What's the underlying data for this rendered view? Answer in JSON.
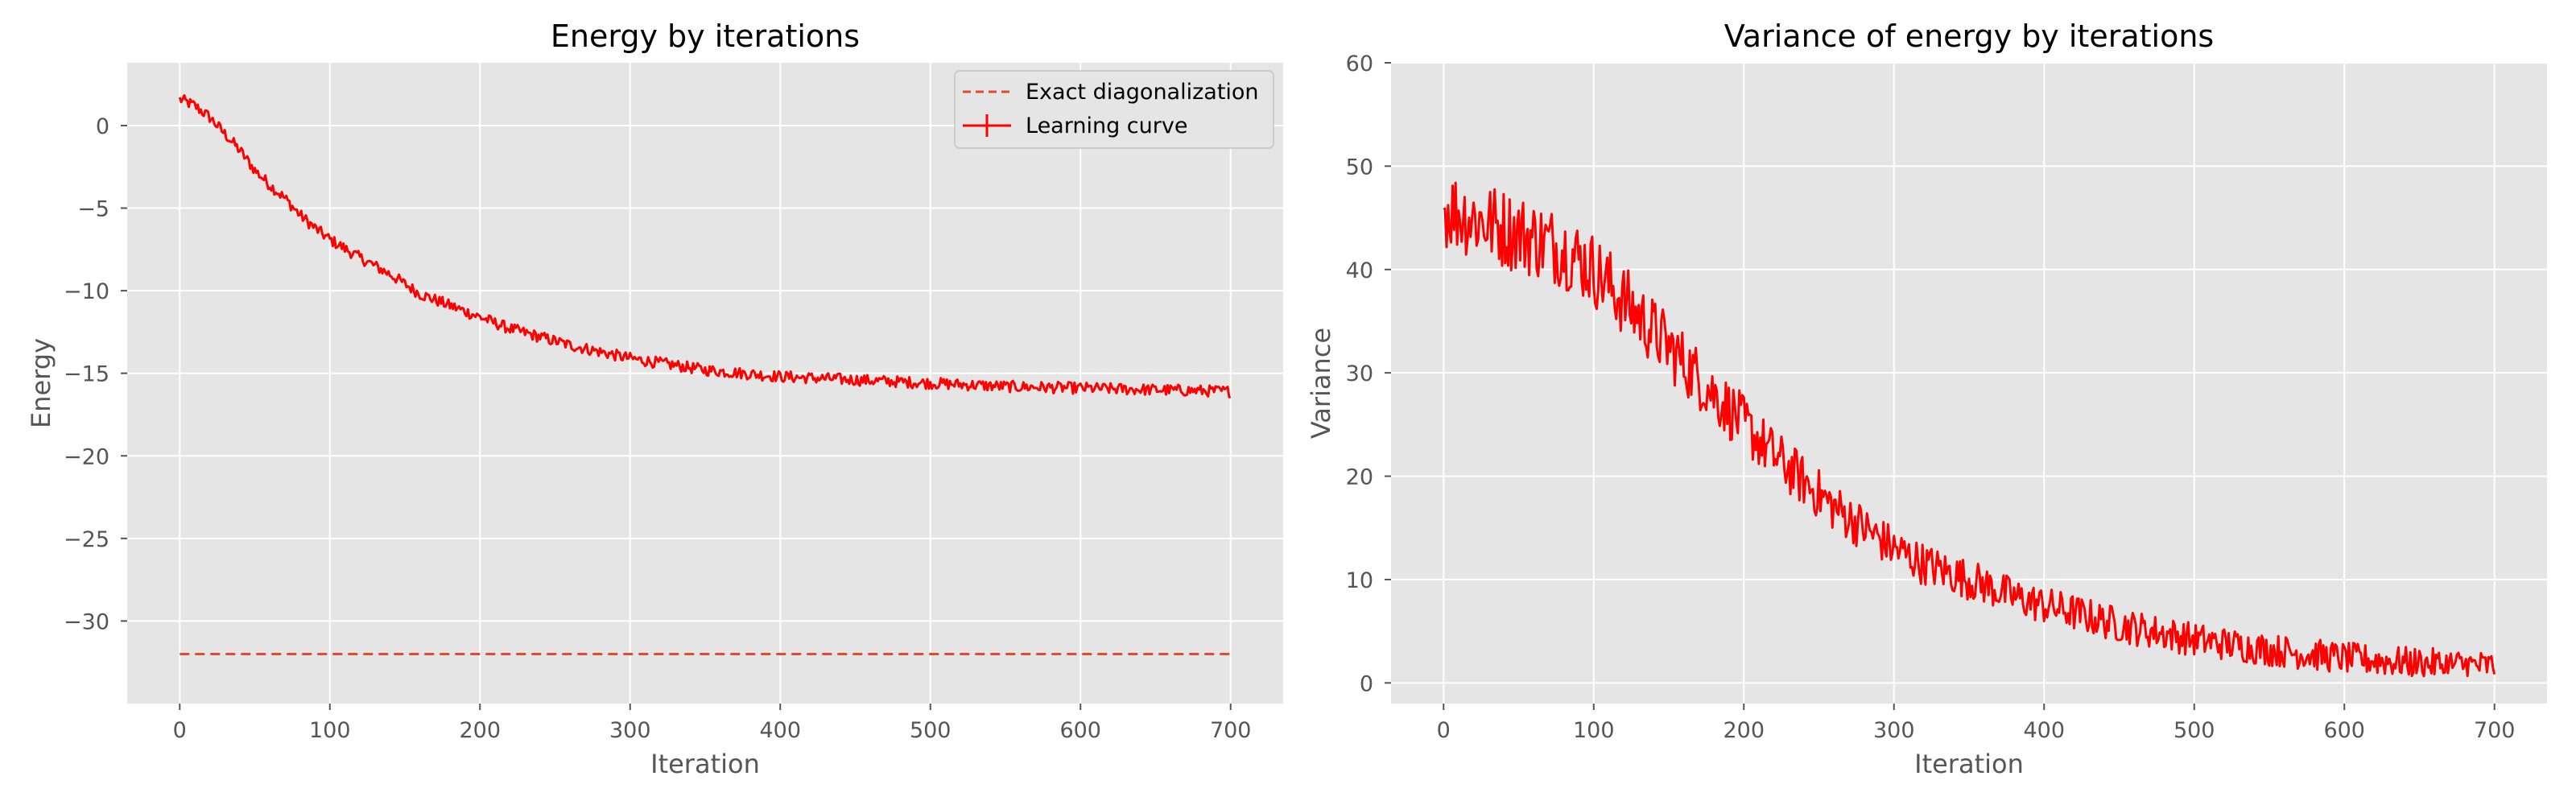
{
  "chart_data": [
    {
      "type": "line",
      "title": "Energy by iterations",
      "xlabel": "Iteration",
      "ylabel": "Energy",
      "xlim": [
        -35,
        735
      ],
      "ylim": [
        -35,
        3.8
      ],
      "xticks": [
        0,
        100,
        200,
        300,
        400,
        500,
        600,
        700
      ],
      "yticks": [
        0,
        -5,
        -10,
        -15,
        -20,
        -25,
        -30
      ],
      "ytick_labels": [
        "0",
        "−5",
        "−10",
        "−15",
        "−20",
        "−25",
        "−30"
      ],
      "grid": true,
      "background": "#e5e5e5",
      "legend": {
        "position": "top-right"
      },
      "series": [
        {
          "name": "Exact diagonalization",
          "style": "dashed",
          "color": "#e24a33",
          "x": [
            0,
            700
          ],
          "y": [
            -32,
            -32
          ]
        },
        {
          "name": "Learning curve",
          "style": "solid",
          "color": "#ff0000",
          "noise": 0.35,
          "x": [
            0,
            10,
            20,
            30,
            40,
            50,
            60,
            70,
            80,
            90,
            100,
            120,
            140,
            160,
            180,
            200,
            220,
            240,
            260,
            280,
            300,
            350,
            400,
            450,
            500,
            550,
            600,
            650,
            700
          ],
          "y": [
            1.6,
            1.2,
            0.5,
            -0.5,
            -1.5,
            -2.7,
            -3.6,
            -4.4,
            -5.4,
            -6.2,
            -6.9,
            -8.0,
            -9.0,
            -10.2,
            -10.9,
            -11.6,
            -12.3,
            -12.8,
            -13.3,
            -13.7,
            -14.1,
            -14.8,
            -15.2,
            -15.4,
            -15.6,
            -15.8,
            -15.9,
            -16.0,
            -16.1
          ]
        }
      ]
    },
    {
      "type": "line",
      "title": "Variance of energy by iterations",
      "xlabel": "Iteration",
      "ylabel": "Variance",
      "xlim": [
        -35,
        735
      ],
      "ylim": [
        -2,
        60
      ],
      "xticks": [
        0,
        100,
        200,
        300,
        400,
        500,
        600,
        700
      ],
      "yticks": [
        0,
        10,
        20,
        30,
        40,
        50,
        60
      ],
      "ytick_labels": [
        "0",
        "10",
        "20",
        "30",
        "40",
        "50",
        "60"
      ],
      "grid": true,
      "background": "#e5e5e5",
      "series": [
        {
          "name": "",
          "style": "solid",
          "color": "#ff0000",
          "noise": 4.0,
          "x": [
            0,
            20,
            40,
            60,
            80,
            100,
            120,
            140,
            160,
            180,
            200,
            220,
            240,
            260,
            280,
            300,
            320,
            340,
            360,
            380,
            400,
            420,
            440,
            460,
            480,
            500,
            550,
            600,
            650,
            700
          ],
          "y": [
            46,
            45,
            44,
            43,
            42,
            40,
            37,
            34,
            31,
            28,
            25,
            22,
            19.5,
            17,
            15,
            13,
            11.5,
            10.5,
            9.5,
            8.3,
            7.5,
            6.8,
            6.0,
            5.3,
            4.8,
            4.2,
            3.2,
            2.4,
            1.9,
            1.6
          ]
        }
      ]
    }
  ]
}
